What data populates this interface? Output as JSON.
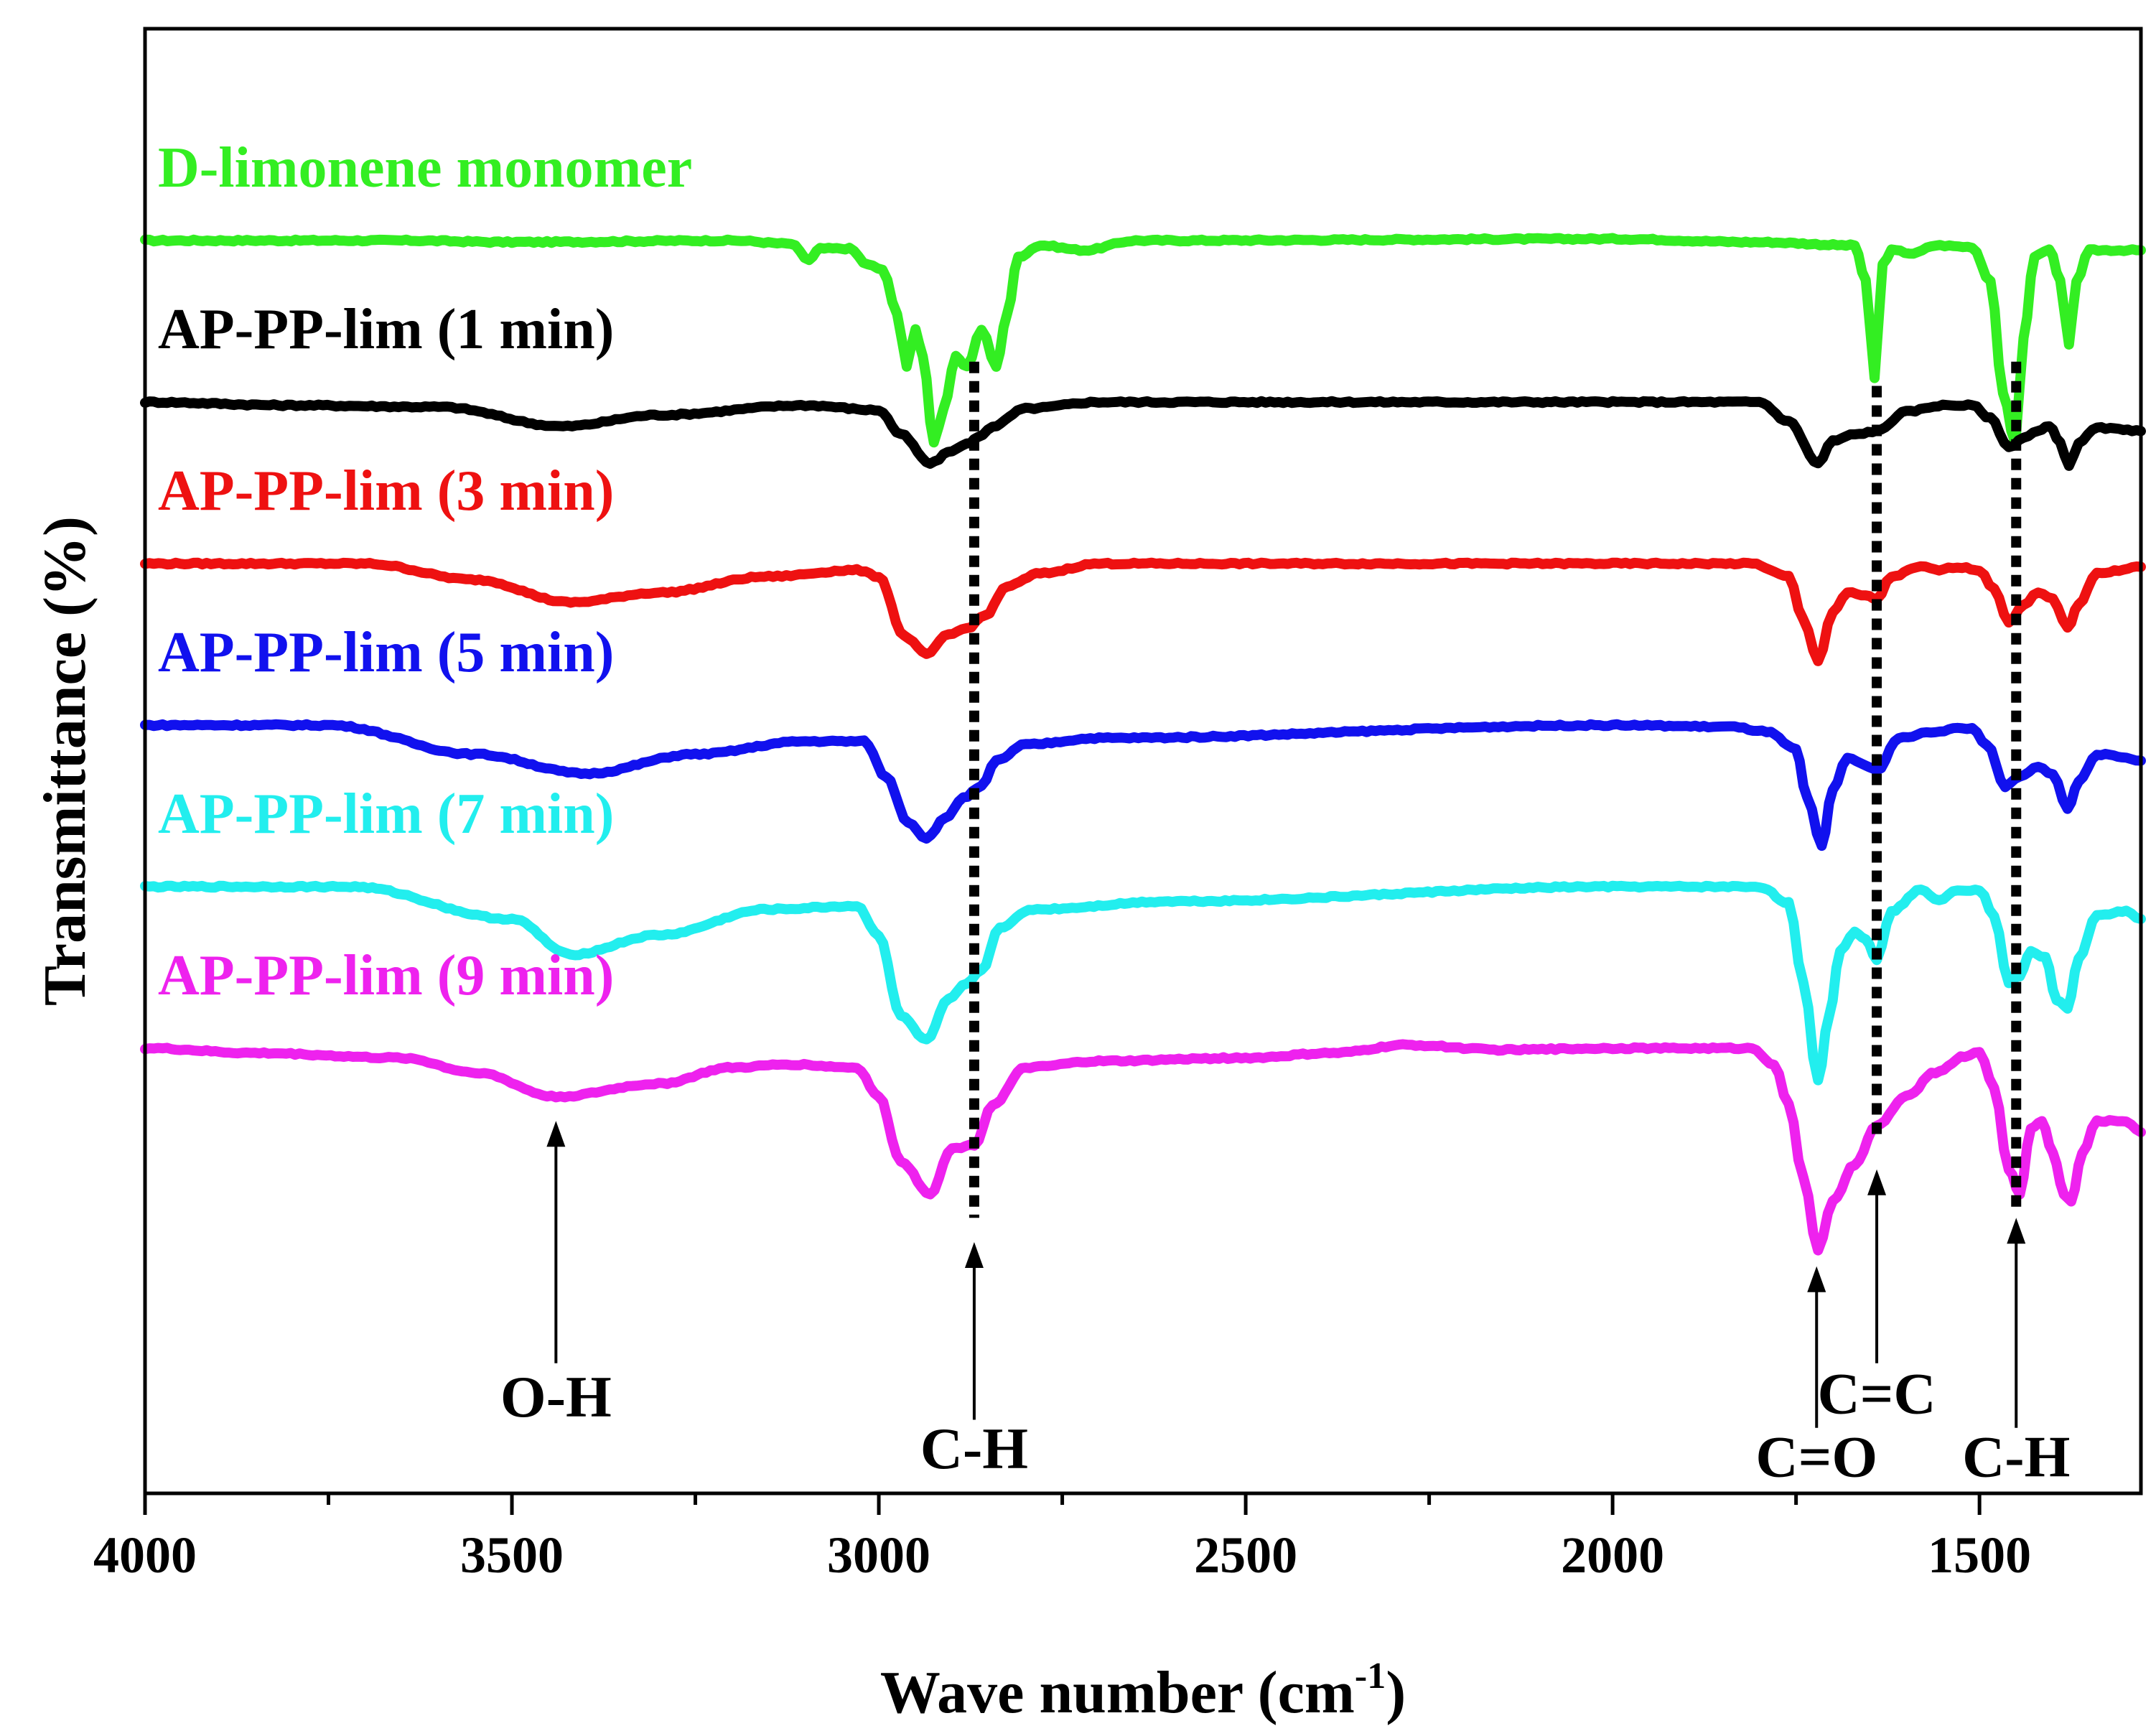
{
  "chart_data": {
    "type": "line",
    "title": "",
    "xlabel": "Wave number (cm",
    "xlabel_sup": "-1",
    "xlabel_tail": ")",
    "ylabel": "Transmittance (%)",
    "xlim": [
      4000,
      1280
    ],
    "x_reversed": true,
    "x_ticks": [
      {
        "value": 4000,
        "label": "4000"
      },
      {
        "value": 3500,
        "label": "3500"
      },
      {
        "value": 3000,
        "label": "3000"
      },
      {
        "value": 2500,
        "label": "2500"
      },
      {
        "value": 2000,
        "label": "2000"
      },
      {
        "value": 1500,
        "label": "1500"
      }
    ],
    "x_minor_ticks": [
      3750,
      3250,
      2750,
      2250,
      1750
    ],
    "y_ticks_shown": false,
    "grid": false,
    "series": [
      {
        "name": "D-limonene monomer",
        "color": "#33ee22",
        "offset": 5.0,
        "points": [
          [
            4000,
            0
          ],
          [
            3650,
            0
          ],
          [
            3500,
            -0.01
          ],
          [
            3200,
            0
          ],
          [
            3120,
            -0.02
          ],
          [
            3095,
            -0.12
          ],
          [
            3080,
            -0.05
          ],
          [
            3040,
            -0.05
          ],
          [
            3015,
            -0.15
          ],
          [
            2995,
            -0.18
          ],
          [
            2975,
            -0.45
          ],
          [
            2962,
            -0.78
          ],
          [
            2950,
            -0.55
          ],
          [
            2940,
            -0.72
          ],
          [
            2925,
            -1.25
          ],
          [
            2912,
            -1.05
          ],
          [
            2895,
            -0.72
          ],
          [
            2880,
            -0.78
          ],
          [
            2860,
            -0.55
          ],
          [
            2840,
            -0.78
          ],
          [
            2825,
            -0.45
          ],
          [
            2810,
            -0.1
          ],
          [
            2780,
            -0.03
          ],
          [
            2720,
            -0.06
          ],
          [
            2650,
            0
          ],
          [
            2000,
            0.01
          ],
          [
            1800,
            -0.01
          ],
          [
            1670,
            -0.03
          ],
          [
            1655,
            -0.25
          ],
          [
            1643,
            -0.85
          ],
          [
            1632,
            -0.15
          ],
          [
            1620,
            -0.06
          ],
          [
            1590,
            -0.08
          ],
          [
            1560,
            -0.03
          ],
          [
            1510,
            -0.04
          ],
          [
            1485,
            -0.25
          ],
          [
            1468,
            -0.95
          ],
          [
            1451,
            -1.25
          ],
          [
            1440,
            -0.6
          ],
          [
            1425,
            -0.1
          ],
          [
            1405,
            -0.05
          ],
          [
            1390,
            -0.25
          ],
          [
            1378,
            -0.65
          ],
          [
            1368,
            -0.25
          ],
          [
            1350,
            -0.06
          ],
          [
            1280,
            -0.06
          ]
        ]
      },
      {
        "name": "AP-PP-lim (1 min)",
        "color": "#000000",
        "offset": 4.0,
        "points": [
          [
            4000,
            0
          ],
          [
            3800,
            -0.02
          ],
          [
            3600,
            -0.03
          ],
          [
            3430,
            -0.15
          ],
          [
            3300,
            -0.08
          ],
          [
            3100,
            -0.02
          ],
          [
            3000,
            -0.05
          ],
          [
            2970,
            -0.2
          ],
          [
            2930,
            -0.38
          ],
          [
            2900,
            -0.3
          ],
          [
            2880,
            -0.26
          ],
          [
            2865,
            -0.22
          ],
          [
            2845,
            -0.15
          ],
          [
            2800,
            -0.04
          ],
          [
            2700,
            0
          ],
          [
            2000,
            0
          ],
          [
            1800,
            0
          ],
          [
            1760,
            -0.12
          ],
          [
            1720,
            -0.38
          ],
          [
            1700,
            -0.24
          ],
          [
            1670,
            -0.2
          ],
          [
            1640,
            -0.18
          ],
          [
            1600,
            -0.06
          ],
          [
            1550,
            -0.02
          ],
          [
            1510,
            -0.02
          ],
          [
            1485,
            -0.1
          ],
          [
            1460,
            -0.28
          ],
          [
            1440,
            -0.22
          ],
          [
            1420,
            -0.18
          ],
          [
            1405,
            -0.15
          ],
          [
            1390,
            -0.25
          ],
          [
            1378,
            -0.4
          ],
          [
            1365,
            -0.25
          ],
          [
            1340,
            -0.16
          ],
          [
            1280,
            -0.18
          ]
        ]
      },
      {
        "name": "AP-PP-lim (3 min)",
        "color": "#ee1111",
        "offset": 3.0,
        "points": [
          [
            4000,
            0
          ],
          [
            3700,
            0
          ],
          [
            3550,
            -0.1
          ],
          [
            3420,
            -0.24
          ],
          [
            3300,
            -0.18
          ],
          [
            3150,
            -0.08
          ],
          [
            3030,
            -0.04
          ],
          [
            3000,
            -0.08
          ],
          [
            2965,
            -0.45
          ],
          [
            2935,
            -0.56
          ],
          [
            2905,
            -0.44
          ],
          [
            2880,
            -0.4
          ],
          [
            2855,
            -0.32
          ],
          [
            2825,
            -0.14
          ],
          [
            2780,
            -0.06
          ],
          [
            2700,
            0
          ],
          [
            2000,
            0
          ],
          [
            1810,
            0
          ],
          [
            1760,
            -0.08
          ],
          [
            1740,
            -0.35
          ],
          [
            1720,
            -0.6
          ],
          [
            1700,
            -0.3
          ],
          [
            1680,
            -0.18
          ],
          [
            1655,
            -0.2
          ],
          [
            1640,
            -0.22
          ],
          [
            1620,
            -0.08
          ],
          [
            1580,
            -0.02
          ],
          [
            1555,
            -0.04
          ],
          [
            1530,
            -0.02
          ],
          [
            1500,
            -0.04
          ],
          [
            1480,
            -0.16
          ],
          [
            1460,
            -0.36
          ],
          [
            1440,
            -0.26
          ],
          [
            1420,
            -0.18
          ],
          [
            1400,
            -0.22
          ],
          [
            1380,
            -0.4
          ],
          [
            1365,
            -0.25
          ],
          [
            1340,
            -0.06
          ],
          [
            1280,
            -0.02
          ]
        ]
      },
      {
        "name": "AP-PP-lim (5 min)",
        "color": "#1111ee",
        "offset": 2.0,
        "points": [
          [
            4000,
            0
          ],
          [
            3750,
            0
          ],
          [
            3550,
            -0.18
          ],
          [
            3400,
            -0.3
          ],
          [
            3250,
            -0.18
          ],
          [
            3100,
            -0.1
          ],
          [
            3020,
            -0.1
          ],
          [
            2990,
            -0.32
          ],
          [
            2960,
            -0.6
          ],
          [
            2935,
            -0.7
          ],
          [
            2910,
            -0.58
          ],
          [
            2885,
            -0.45
          ],
          [
            2860,
            -0.38
          ],
          [
            2840,
            -0.22
          ],
          [
            2800,
            -0.12
          ],
          [
            2700,
            -0.08
          ],
          [
            2000,
            0
          ],
          [
            1840,
            -0.01
          ],
          [
            1790,
            -0.04
          ],
          [
            1750,
            -0.15
          ],
          [
            1735,
            -0.45
          ],
          [
            1715,
            -0.75
          ],
          [
            1700,
            -0.4
          ],
          [
            1680,
            -0.2
          ],
          [
            1655,
            -0.25
          ],
          [
            1640,
            -0.28
          ],
          [
            1610,
            -0.08
          ],
          [
            1560,
            -0.04
          ],
          [
            1530,
            -0.02
          ],
          [
            1510,
            -0.02
          ],
          [
            1490,
            -0.12
          ],
          [
            1465,
            -0.38
          ],
          [
            1445,
            -0.32
          ],
          [
            1420,
            -0.26
          ],
          [
            1400,
            -0.3
          ],
          [
            1380,
            -0.52
          ],
          [
            1365,
            -0.35
          ],
          [
            1340,
            -0.18
          ],
          [
            1300,
            -0.2
          ],
          [
            1280,
            -0.22
          ]
        ]
      },
      {
        "name": "AP-PP-lim (7 min)",
        "color": "#22eeee",
        "offset": 1.0,
        "points": [
          [
            4000,
            0
          ],
          [
            3720,
            0
          ],
          [
            3500,
            -0.2
          ],
          [
            3420,
            -0.42
          ],
          [
            3300,
            -0.3
          ],
          [
            3150,
            -0.14
          ],
          [
            3030,
            -0.12
          ],
          [
            3000,
            -0.3
          ],
          [
            2970,
            -0.8
          ],
          [
            2935,
            -0.95
          ],
          [
            2905,
            -0.7
          ],
          [
            2880,
            -0.6
          ],
          [
            2860,
            -0.52
          ],
          [
            2835,
            -0.25
          ],
          [
            2790,
            -0.14
          ],
          [
            2600,
            -0.09
          ],
          [
            2000,
            0
          ],
          [
            1800,
            0
          ],
          [
            1760,
            -0.1
          ],
          [
            1740,
            -0.6
          ],
          [
            1720,
            -1.2
          ],
          [
            1705,
            -0.8
          ],
          [
            1690,
            -0.4
          ],
          [
            1670,
            -0.28
          ],
          [
            1655,
            -0.32
          ],
          [
            1640,
            -0.45
          ],
          [
            1620,
            -0.15
          ],
          [
            1580,
            -0.02
          ],
          [
            1555,
            -0.08
          ],
          [
            1530,
            -0.02
          ],
          [
            1500,
            -0.02
          ],
          [
            1480,
            -0.18
          ],
          [
            1460,
            -0.6
          ],
          [
            1445,
            -0.55
          ],
          [
            1430,
            -0.4
          ],
          [
            1410,
            -0.44
          ],
          [
            1395,
            -0.7
          ],
          [
            1380,
            -0.75
          ],
          [
            1365,
            -0.45
          ],
          [
            1340,
            -0.18
          ],
          [
            1300,
            -0.15
          ],
          [
            1280,
            -0.2
          ]
        ]
      },
      {
        "name": "AP-PP-lim (9 min)",
        "color": "#ee22ee",
        "offset": 0.0,
        "points": [
          [
            4000,
            0
          ],
          [
            3850,
            -0.03
          ],
          [
            3650,
            -0.06
          ],
          [
            3550,
            -0.15
          ],
          [
            3440,
            -0.3
          ],
          [
            3300,
            -0.22
          ],
          [
            3200,
            -0.12
          ],
          [
            3120,
            -0.1
          ],
          [
            3030,
            -0.12
          ],
          [
            3000,
            -0.3
          ],
          [
            2970,
            -0.7
          ],
          [
            2930,
            -0.9
          ],
          [
            2900,
            -0.62
          ],
          [
            2870,
            -0.6
          ],
          [
            2845,
            -0.35
          ],
          [
            2800,
            -0.12
          ],
          [
            2700,
            -0.08
          ],
          [
            2500,
            -0.06
          ],
          [
            2380,
            -0.03
          ],
          [
            2280,
            0.02
          ],
          [
            2150,
            -0.01
          ],
          [
            2000,
            0
          ],
          [
            1810,
            0
          ],
          [
            1780,
            -0.1
          ],
          [
            1760,
            -0.35
          ],
          [
            1740,
            -0.8
          ],
          [
            1720,
            -1.25
          ],
          [
            1700,
            -0.95
          ],
          [
            1670,
            -0.72
          ],
          [
            1640,
            -0.48
          ],
          [
            1600,
            -0.3
          ],
          [
            1560,
            -0.15
          ],
          [
            1520,
            -0.05
          ],
          [
            1500,
            -0.02
          ],
          [
            1480,
            -0.25
          ],
          [
            1460,
            -0.75
          ],
          [
            1445,
            -0.9
          ],
          [
            1430,
            -0.5
          ],
          [
            1415,
            -0.45
          ],
          [
            1400,
            -0.65
          ],
          [
            1385,
            -0.9
          ],
          [
            1375,
            -0.95
          ],
          [
            1360,
            -0.65
          ],
          [
            1340,
            -0.45
          ],
          [
            1300,
            -0.45
          ],
          [
            1280,
            -0.52
          ]
        ]
      }
    ],
    "guide_lines": [
      {
        "x": 2870,
        "from_offset": 4.25,
        "to_offset": -1.05
      },
      {
        "x": 1640,
        "from_offset": 4.1,
        "to_offset": -0.55
      },
      {
        "x": 1450,
        "from_offset": 4.25,
        "to_offset": -1.0
      }
    ],
    "annotations": [
      {
        "label": "O-H",
        "x": 3440,
        "arrow_tip_offset": -0.45,
        "arrow_tail_offset": -1.95,
        "label_offset": -2.28
      },
      {
        "label": "C-H",
        "x": 2870,
        "arrow_tip_offset": -1.2,
        "arrow_tail_offset": -2.3,
        "label_offset": -2.6
      },
      {
        "label": "C=O",
        "x": 1722,
        "arrow_tip_offset": -1.35,
        "arrow_tail_offset": -2.35,
        "label_offset": -2.65
      },
      {
        "label": "C=C",
        "x": 1640,
        "arrow_tip_offset": -0.75,
        "arrow_tail_offset": -1.95,
        "label_offset": -2.26
      },
      {
        "label": "C-H",
        "x": 1450,
        "arrow_tip_offset": -1.05,
        "arrow_tail_offset": -2.35,
        "label_offset": -2.65
      }
    ]
  }
}
